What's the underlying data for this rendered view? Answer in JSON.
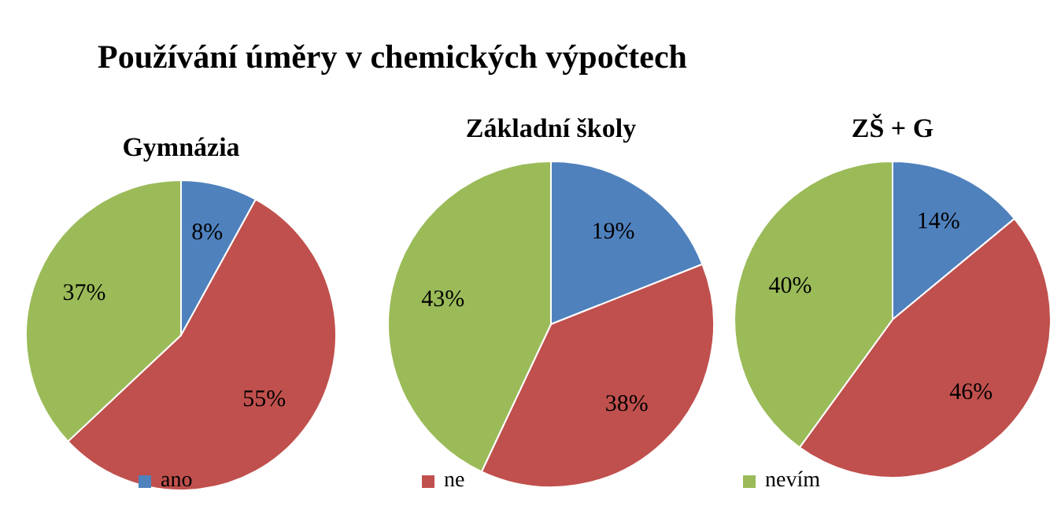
{
  "chart_data": [
    {
      "type": "pie",
      "title": "Gymnázia",
      "annotations": [
        "Používání úměry v chemických výpočtech"
      ],
      "categories": [
        "ano",
        "ne",
        "nevím"
      ],
      "values": [
        8,
        55,
        37
      ],
      "value_labels": [
        "8%",
        "55%",
        "37%"
      ],
      "colors": [
        "#4f81bd",
        "#c0504d",
        "#9bbb59"
      ],
      "legend": "bottom"
    },
    {
      "type": "pie",
      "title": "Základní školy",
      "categories": [
        null,
        null,
        null
      ],
      "values": [
        19,
        38,
        43
      ],
      "value_labels": [
        "19%",
        "38%",
        "43%"
      ],
      "colors": [
        "#4f81bd",
        "#c0504d",
        "#9bbb59"
      ]
    },
    {
      "type": "pie",
      "title": "ZŠ + G",
      "categories": [
        null,
        null,
        null
      ],
      "values": [
        14,
        46,
        40
      ],
      "value_labels": [
        "14%",
        "46%",
        "40%"
      ],
      "colors": [
        "#4f81bd",
        "#c0504d",
        "#9bbb59"
      ]
    }
  ]
}
